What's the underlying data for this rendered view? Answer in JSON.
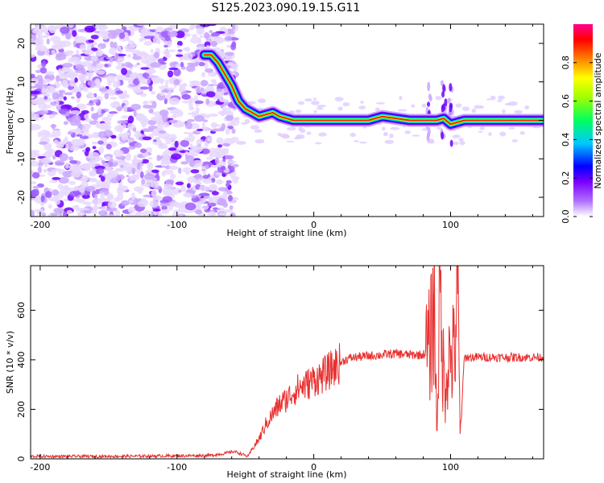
{
  "title": "S125.2023.090.19.15.G11",
  "chart_data": [
    {
      "type": "heatmap",
      "xlabel": "Height of straight line (km)",
      "ylabel": "Frequency (Hz)",
      "xlim": [
        -207,
        168
      ],
      "ylim": [
        -25,
        25
      ],
      "xticks": [
        -200,
        -100,
        0,
        100
      ],
      "yticks": [
        -20,
        -10,
        0,
        10,
        20
      ],
      "colorbar": {
        "label": "Normalized spectral amplitude",
        "range": [
          0,
          1
        ],
        "ticks": [
          "0.0",
          "0.2",
          "0.4",
          "0.6",
          "0.8"
        ],
        "colors": [
          "#ffffff",
          "#7b00ff",
          "#0000ff",
          "#00c8ff",
          "#00ff60",
          "#a0ff00",
          "#ffff00",
          "#ff8000",
          "#ff0000",
          "#ff0090"
        ]
      },
      "ridge": {
        "x": [
          -80,
          -75,
          -70,
          -65,
          -60,
          -55,
          -50,
          -45,
          -40,
          -35,
          -30,
          -25,
          -20,
          -15,
          -10,
          0,
          20,
          40,
          50,
          60,
          70,
          80,
          90,
          95,
          100,
          110,
          130,
          168
        ],
        "y": [
          17,
          17,
          15,
          12,
          9,
          5,
          3,
          2,
          1,
          1.5,
          2,
          1,
          0.5,
          0,
          0,
          0,
          0,
          0,
          1,
          0.5,
          0,
          0,
          0,
          0.5,
          -1,
          0,
          0,
          0
        ]
      }
    },
    {
      "type": "line",
      "xlabel": "Height of straight line (km)",
      "ylabel": "SNR (10 * v/v)",
      "xlim": [
        -207,
        168
      ],
      "ylim": [
        0,
        780
      ],
      "xticks": [
        -200,
        -100,
        0,
        100
      ],
      "yticks": [
        0,
        200,
        400,
        600
      ],
      "color": "#e83030",
      "x": [
        -207,
        -150,
        -100,
        -75,
        -65,
        -58,
        -52,
        -48,
        -45,
        -40,
        -35,
        -30,
        -25,
        -20,
        -15,
        -10,
        -5,
        0,
        5,
        10,
        15,
        20,
        25,
        30,
        40,
        50,
        60,
        70,
        80,
        85,
        88,
        90,
        92,
        94,
        96,
        98,
        100,
        103,
        105,
        107,
        110,
        120,
        140,
        168
      ],
      "y": [
        10,
        10,
        12,
        14,
        22,
        30,
        18,
        10,
        40,
        80,
        140,
        180,
        220,
        240,
        270,
        290,
        300,
        320,
        330,
        350,
        370,
        390,
        405,
        410,
        415,
        420,
        425,
        420,
        420,
        450,
        650,
        100,
        700,
        400,
        300,
        400,
        410,
        420,
        750,
        80,
        410,
        410,
        410,
        410
      ]
    }
  ]
}
